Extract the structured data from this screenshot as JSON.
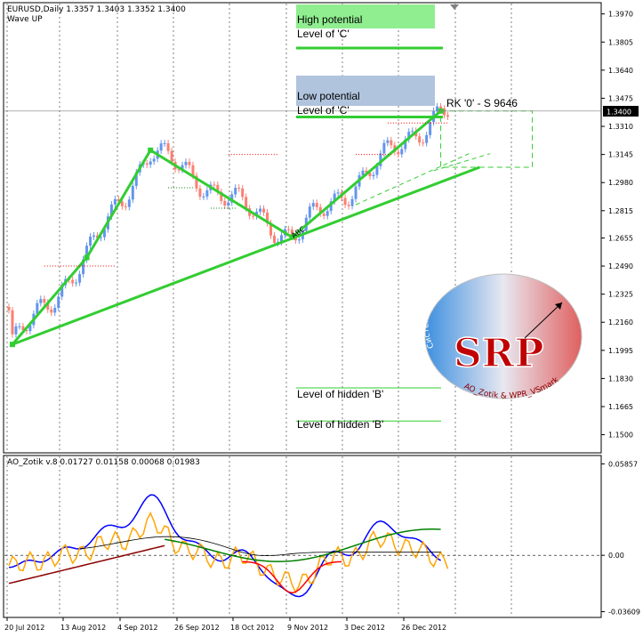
{
  "symbol_line": "EURUSD,Daily  1.3357 1.3403 1.3352 1.3400",
  "wave_label": "Wave UP",
  "indicator_line": "AO_Zotik v.8 0.01727 0.01158 0.00068 0.01983",
  "annotations": {
    "high_potential": "High potential",
    "level_c1": "Level of 'C'",
    "low_potential": "Low potential",
    "level_c2": "Level of 'C'",
    "rk": "RK '0' - S 9646",
    "hidden_b1": "Level of hidden 'B'",
    "hidden_b2": "Level of hidden 'B'",
    "abc": "ABC"
  },
  "current_price": "1.3400",
  "logo": {
    "top_text": "Система раннего прогнозирования",
    "letters": "SRP",
    "bottom_text": "AO_Zotik & WPR_VSmark"
  },
  "chart_data": {
    "type": "candlestick",
    "price_axis": [
      "1.3970",
      "1.3805",
      "1.3640",
      "1.3475",
      "1.3310",
      "1.3145",
      "1.2980",
      "1.2815",
      "1.2655",
      "1.2490",
      "1.2325",
      "1.2160",
      "1.1995",
      "1.1830",
      "1.1665",
      "1.1500"
    ],
    "price_range": [
      1.143,
      1.401
    ],
    "indicator_axis": [
      "0.05857",
      "0.00",
      "-0.03609"
    ],
    "indicator_range": [
      -0.0375,
      0.0605
    ],
    "date_labels": [
      "20 Jul 2012",
      "13 Aug 2012",
      "4 Sep 2012",
      "26 Sep 2012",
      "18 Oct 2012",
      "9 Nov 2012",
      "3 Dec 2012",
      "26 Dec 2012"
    ],
    "candle_count": 125,
    "wave_points": [
      {
        "bar": 1,
        "price": 1.203
      },
      {
        "bar": 22,
        "price": 1.254
      },
      {
        "bar": 40,
        "price": 1.317
      },
      {
        "bar": 80,
        "price": 1.266
      },
      {
        "bar": 122,
        "price": 1.34
      }
    ],
    "trend_line": [
      {
        "bar": 1,
        "price": 1.203
      },
      {
        "bar": 133,
        "price": 1.307
      }
    ],
    "level_c_high": 1.377,
    "level_c_low": 1.3365,
    "hidden_b_levels": [
      1.1775,
      1.158
    ],
    "colors": {
      "bull": "#6495ed",
      "bear": "#fa8072",
      "wave": "#32cd32",
      "ao_blue": "#0000ff",
      "ao_orange": "#ffa500",
      "ao_green": "#008000",
      "ao_red": "#ff0000",
      "ao_darkred": "#8b0000",
      "ao_black": "#000000",
      "zone_high": "#90ee90",
      "zone_low": "#b0c4de"
    }
  }
}
